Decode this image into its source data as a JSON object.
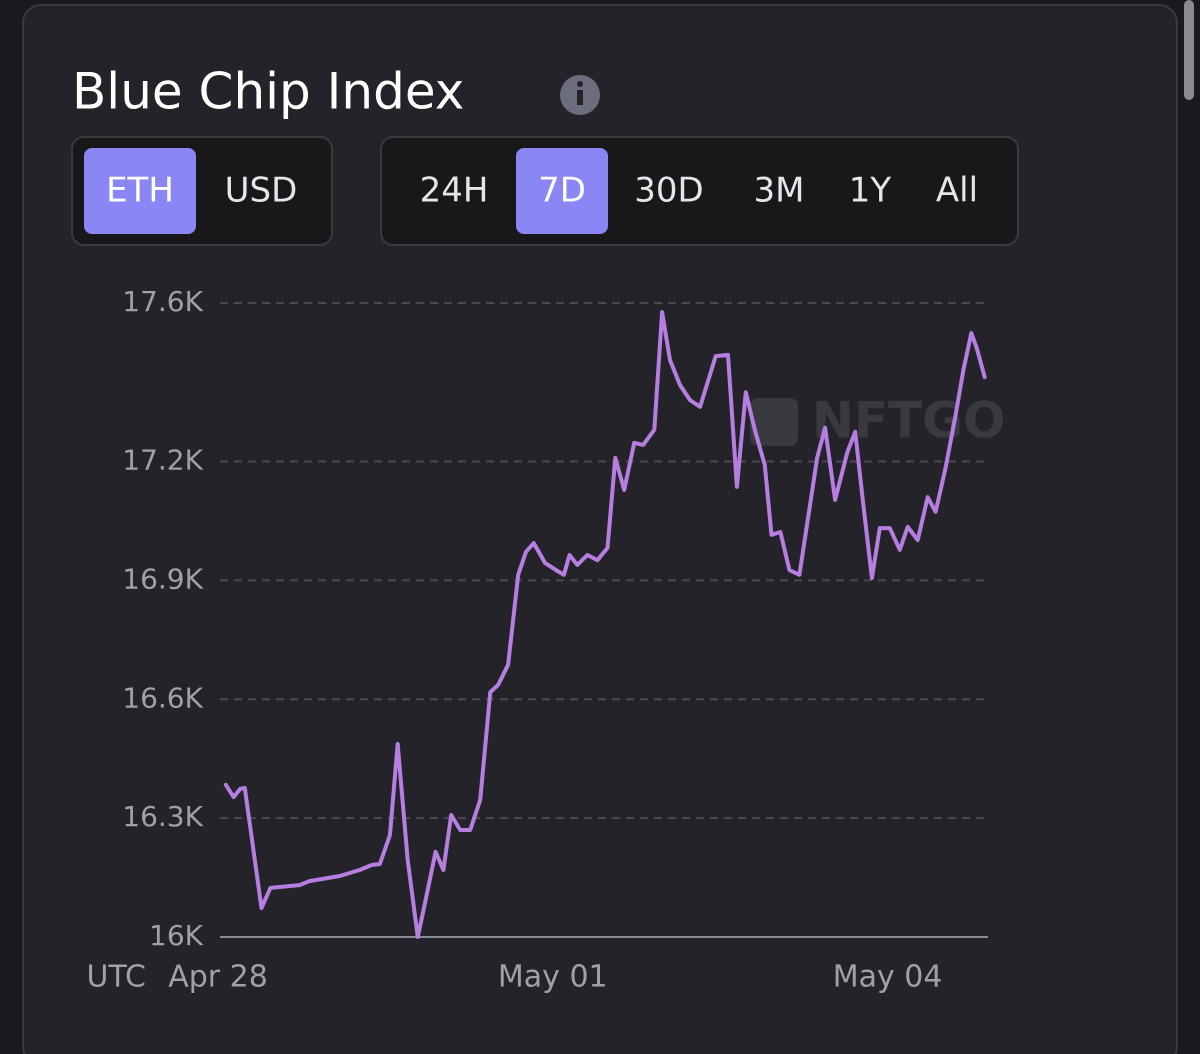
{
  "chart_data": {
    "type": "line",
    "title": "Blue Chip Index",
    "currency_options": [
      "ETH",
      "USD"
    ],
    "range_options": [
      "24H",
      "7D",
      "30D",
      "3M",
      "1Y",
      "All"
    ],
    "watermark": "NFTGO",
    "x_axis_label": "UTC",
    "color": "#b57ee0",
    "grid": true,
    "xlim": [
      0,
      6.9
    ],
    "xticks": [
      {
        "value": 0,
        "label": "Apr 28"
      },
      {
        "value": 3,
        "label": "May 01"
      },
      {
        "value": 6,
        "label": "May 04"
      }
    ],
    "ylim": [
      16000,
      17600
    ],
    "yticks": [
      {
        "value": 16000,
        "label": "16K"
      },
      {
        "value": 16300,
        "label": "16.3K"
      },
      {
        "value": 16600,
        "label": "16.6K"
      },
      {
        "value": 16900,
        "label": "16.9K"
      },
      {
        "value": 17200,
        "label": "17.2K"
      },
      {
        "value": 17600,
        "label": "17.6K"
      }
    ],
    "x": [
      0.07,
      0.14,
      0.2,
      0.24,
      0.39,
      0.47,
      0.73,
      0.82,
      1.09,
      1.27,
      1.38,
      1.45,
      1.54,
      1.61,
      1.7,
      1.79,
      1.86,
      1.95,
      2.02,
      2.09,
      2.17,
      2.26,
      2.35,
      2.44,
      2.51,
      2.6,
      2.69,
      2.76,
      2.83,
      2.93,
      3.03,
      3.1,
      3.15,
      3.22,
      3.31,
      3.4,
      3.49,
      3.56,
      3.64,
      3.73,
      3.81,
      3.91,
      3.98,
      4.05,
      4.14,
      4.23,
      4.32,
      4.46,
      4.57,
      4.65,
      4.73,
      4.81,
      4.9,
      4.96,
      5.04,
      5.12,
      5.21,
      5.37,
      5.44,
      5.53,
      5.64,
      5.71,
      5.78,
      5.86,
      5.93,
      6.02,
      6.11,
      6.18,
      6.27,
      6.36,
      6.43,
      6.52,
      6.61,
      6.68,
      6.75,
      6.8,
      6.87
    ],
    "series": [
      {
        "name": "Blue Chip Index",
        "color": "#b57ee0",
        "values": [
          16384,
          16353,
          16374,
          16376,
          16073,
          16124,
          16131,
          16141,
          16154,
          16169,
          16182,
          16184,
          16257,
          16487,
          16194,
          16000,
          16093,
          16215,
          16169,
          16308,
          16270,
          16270,
          16346,
          16618,
          16636,
          16687,
          16914,
          16972,
          16994,
          16944,
          16926,
          16914,
          16964,
          16939,
          16964,
          16951,
          16982,
          17209,
          17128,
          17247,
          17242,
          17280,
          17577,
          17456,
          17393,
          17355,
          17338,
          17466,
          17469,
          17136,
          17375,
          17280,
          17191,
          17015,
          17022,
          16926,
          16914,
          17211,
          17285,
          17103,
          17224,
          17275,
          17098,
          16906,
          17032,
          17032,
          16977,
          17035,
          17002,
          17110,
          17073,
          17184,
          17317,
          17431,
          17524,
          17486,
          17413
        ]
      }
    ]
  }
}
